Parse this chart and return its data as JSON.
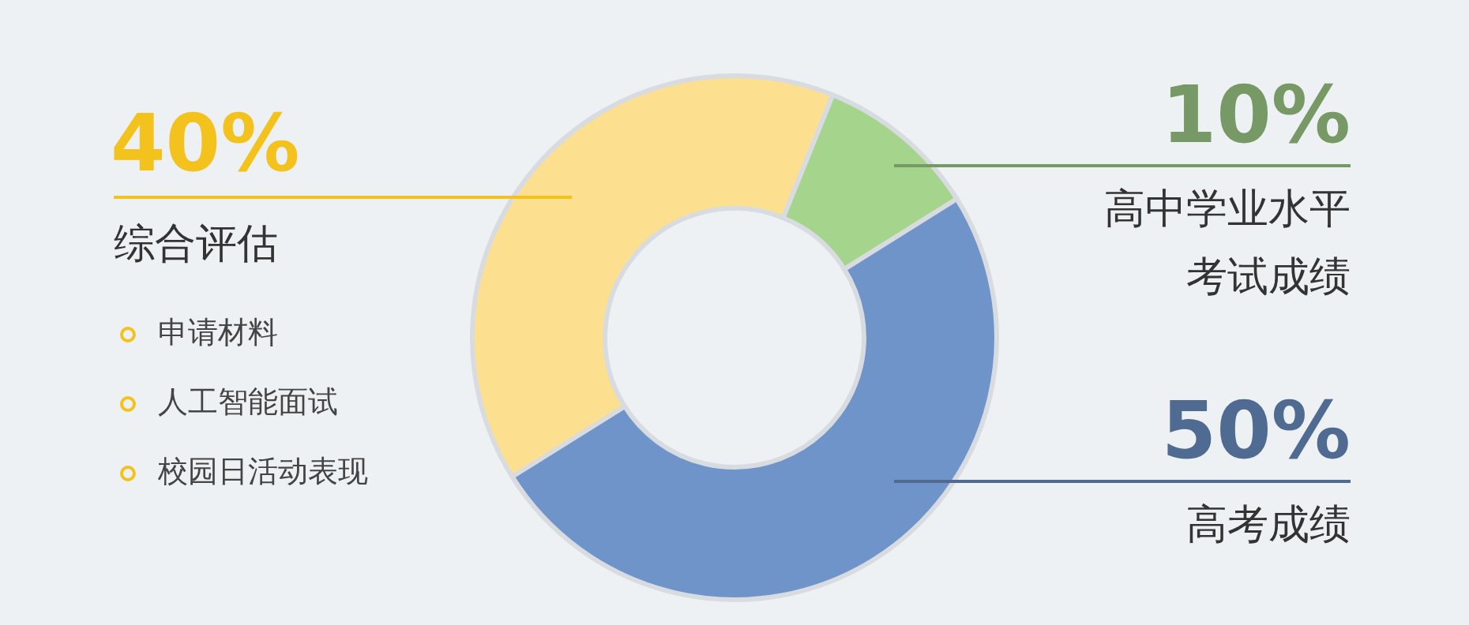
{
  "chart_data": {
    "type": "donut",
    "categories": [
      "高中学业水平考试成绩",
      "高考成绩",
      "综合评估"
    ],
    "values": [
      10,
      50,
      40
    ],
    "value_labels": [
      "10%",
      "50%",
      "40%"
    ],
    "colors": [
      "#a5d58c",
      "#6f94c9",
      "#fde08f"
    ],
    "annotations": [
      "申请材料",
      "人工智能面试",
      "校园日活动表现"
    ]
  }
}
